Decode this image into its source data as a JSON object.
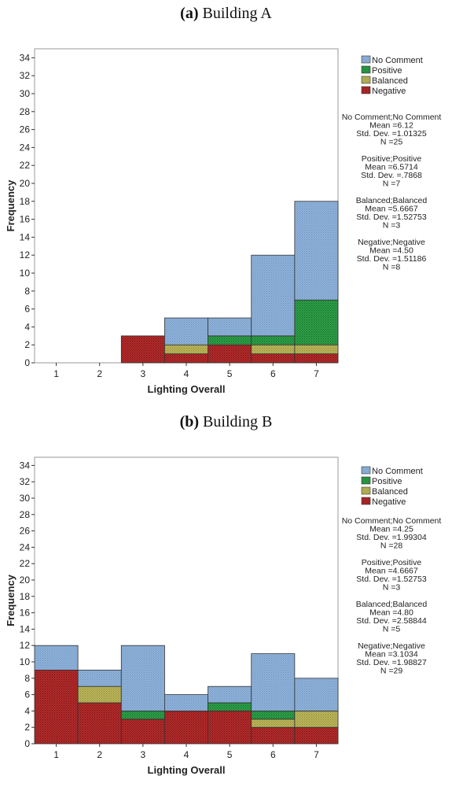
{
  "colors": {
    "no_comment": "#8eb1d9",
    "positive": "#2f9e48",
    "balanced": "#bab55a",
    "negative": "#b42b2b"
  },
  "panels": [
    {
      "label": "(a)",
      "title": "Building A"
    },
    {
      "label": "(b)",
      "title": "Building B"
    }
  ],
  "chart_data": [
    {
      "type": "bar",
      "stacked": true,
      "title": "(a) Building A",
      "xlabel": "Lighting Overall",
      "ylabel": "Frequency",
      "categories": [
        "1",
        "2",
        "3",
        "4",
        "5",
        "6",
        "7"
      ],
      "yticks": [
        "0",
        "2",
        "4",
        "6",
        "8",
        "10",
        "12",
        "14",
        "16",
        "18",
        "20",
        "22",
        "24",
        "26",
        "28",
        "30",
        "32",
        "34"
      ],
      "ylim": [
        0,
        35
      ],
      "series": [
        {
          "name": "Negative",
          "color": "#b42b2b",
          "values": [
            0,
            0,
            3,
            1,
            2,
            1,
            1
          ]
        },
        {
          "name": "Balanced",
          "color": "#bab55a",
          "values": [
            0,
            0,
            0,
            1,
            0,
            1,
            1
          ]
        },
        {
          "name": "Positive",
          "color": "#2f9e48",
          "values": [
            0,
            0,
            0,
            0,
            1,
            1,
            5
          ]
        },
        {
          "name": "No Comment",
          "color": "#8eb1d9",
          "values": [
            0,
            0,
            0,
            3,
            2,
            9,
            11
          ]
        }
      ],
      "legend": {
        "position": "right",
        "order": [
          "No Comment",
          "Positive",
          "Balanced",
          "Negative"
        ]
      },
      "stats": [
        {
          "header": "No Comment;No Comment",
          "mean": "Mean =6.12",
          "sd": "Std. Dev. =1.01325",
          "n": "N =25"
        },
        {
          "header": "Positive;Positive",
          "mean": "Mean =6.5714",
          "sd": "Std. Dev. =.7868",
          "n": "N =7"
        },
        {
          "header": "Balanced;Balanced",
          "mean": "Mean =5.6667",
          "sd": "Std. Dev. =1.52753",
          "n": "N =3"
        },
        {
          "header": "Negative;Negative",
          "mean": "Mean =4.50",
          "sd": "Std. Dev. =1.51186",
          "n": "N =8"
        }
      ]
    },
    {
      "type": "bar",
      "stacked": true,
      "title": "(b) Building B",
      "xlabel": "Lighting Overall",
      "ylabel": "Frequency",
      "categories": [
        "1",
        "2",
        "3",
        "4",
        "5",
        "6",
        "7"
      ],
      "yticks": [
        "0",
        "2",
        "4",
        "6",
        "8",
        "10",
        "12",
        "14",
        "16",
        "18",
        "20",
        "22",
        "24",
        "26",
        "28",
        "30",
        "32",
        "34"
      ],
      "ylim": [
        0,
        35
      ],
      "series": [
        {
          "name": "Negative",
          "color": "#b42b2b",
          "values": [
            9,
            5,
            3,
            4,
            4,
            2,
            2
          ]
        },
        {
          "name": "Balanced",
          "color": "#bab55a",
          "values": [
            0,
            2,
            0,
            0,
            0,
            1,
            2
          ]
        },
        {
          "name": "Positive",
          "color": "#2f9e48",
          "values": [
            0,
            0,
            1,
            0,
            1,
            1,
            0
          ]
        },
        {
          "name": "No Comment",
          "color": "#8eb1d9",
          "values": [
            3,
            2,
            8,
            2,
            2,
            7,
            4
          ]
        }
      ],
      "legend": {
        "position": "right",
        "order": [
          "No Comment",
          "Positive",
          "Balanced",
          "Negative"
        ]
      },
      "stats": [
        {
          "header": "No Comment;No Comment",
          "mean": "Mean =4.25",
          "sd": "Std. Dev. =1.99304",
          "n": "N =28"
        },
        {
          "header": "Positive;Positive",
          "mean": "Mean =4.6667",
          "sd": "Std. Dev. =1.52753",
          "n": "N =3"
        },
        {
          "header": "Balanced;Balanced",
          "mean": "Mean =4.80",
          "sd": "Std. Dev. =2.58844",
          "n": "N =5"
        },
        {
          "header": "Negative;Negative",
          "mean": "Mean =3.1034",
          "sd": "Std. Dev. =1.98827",
          "n": "N =29"
        }
      ]
    }
  ]
}
